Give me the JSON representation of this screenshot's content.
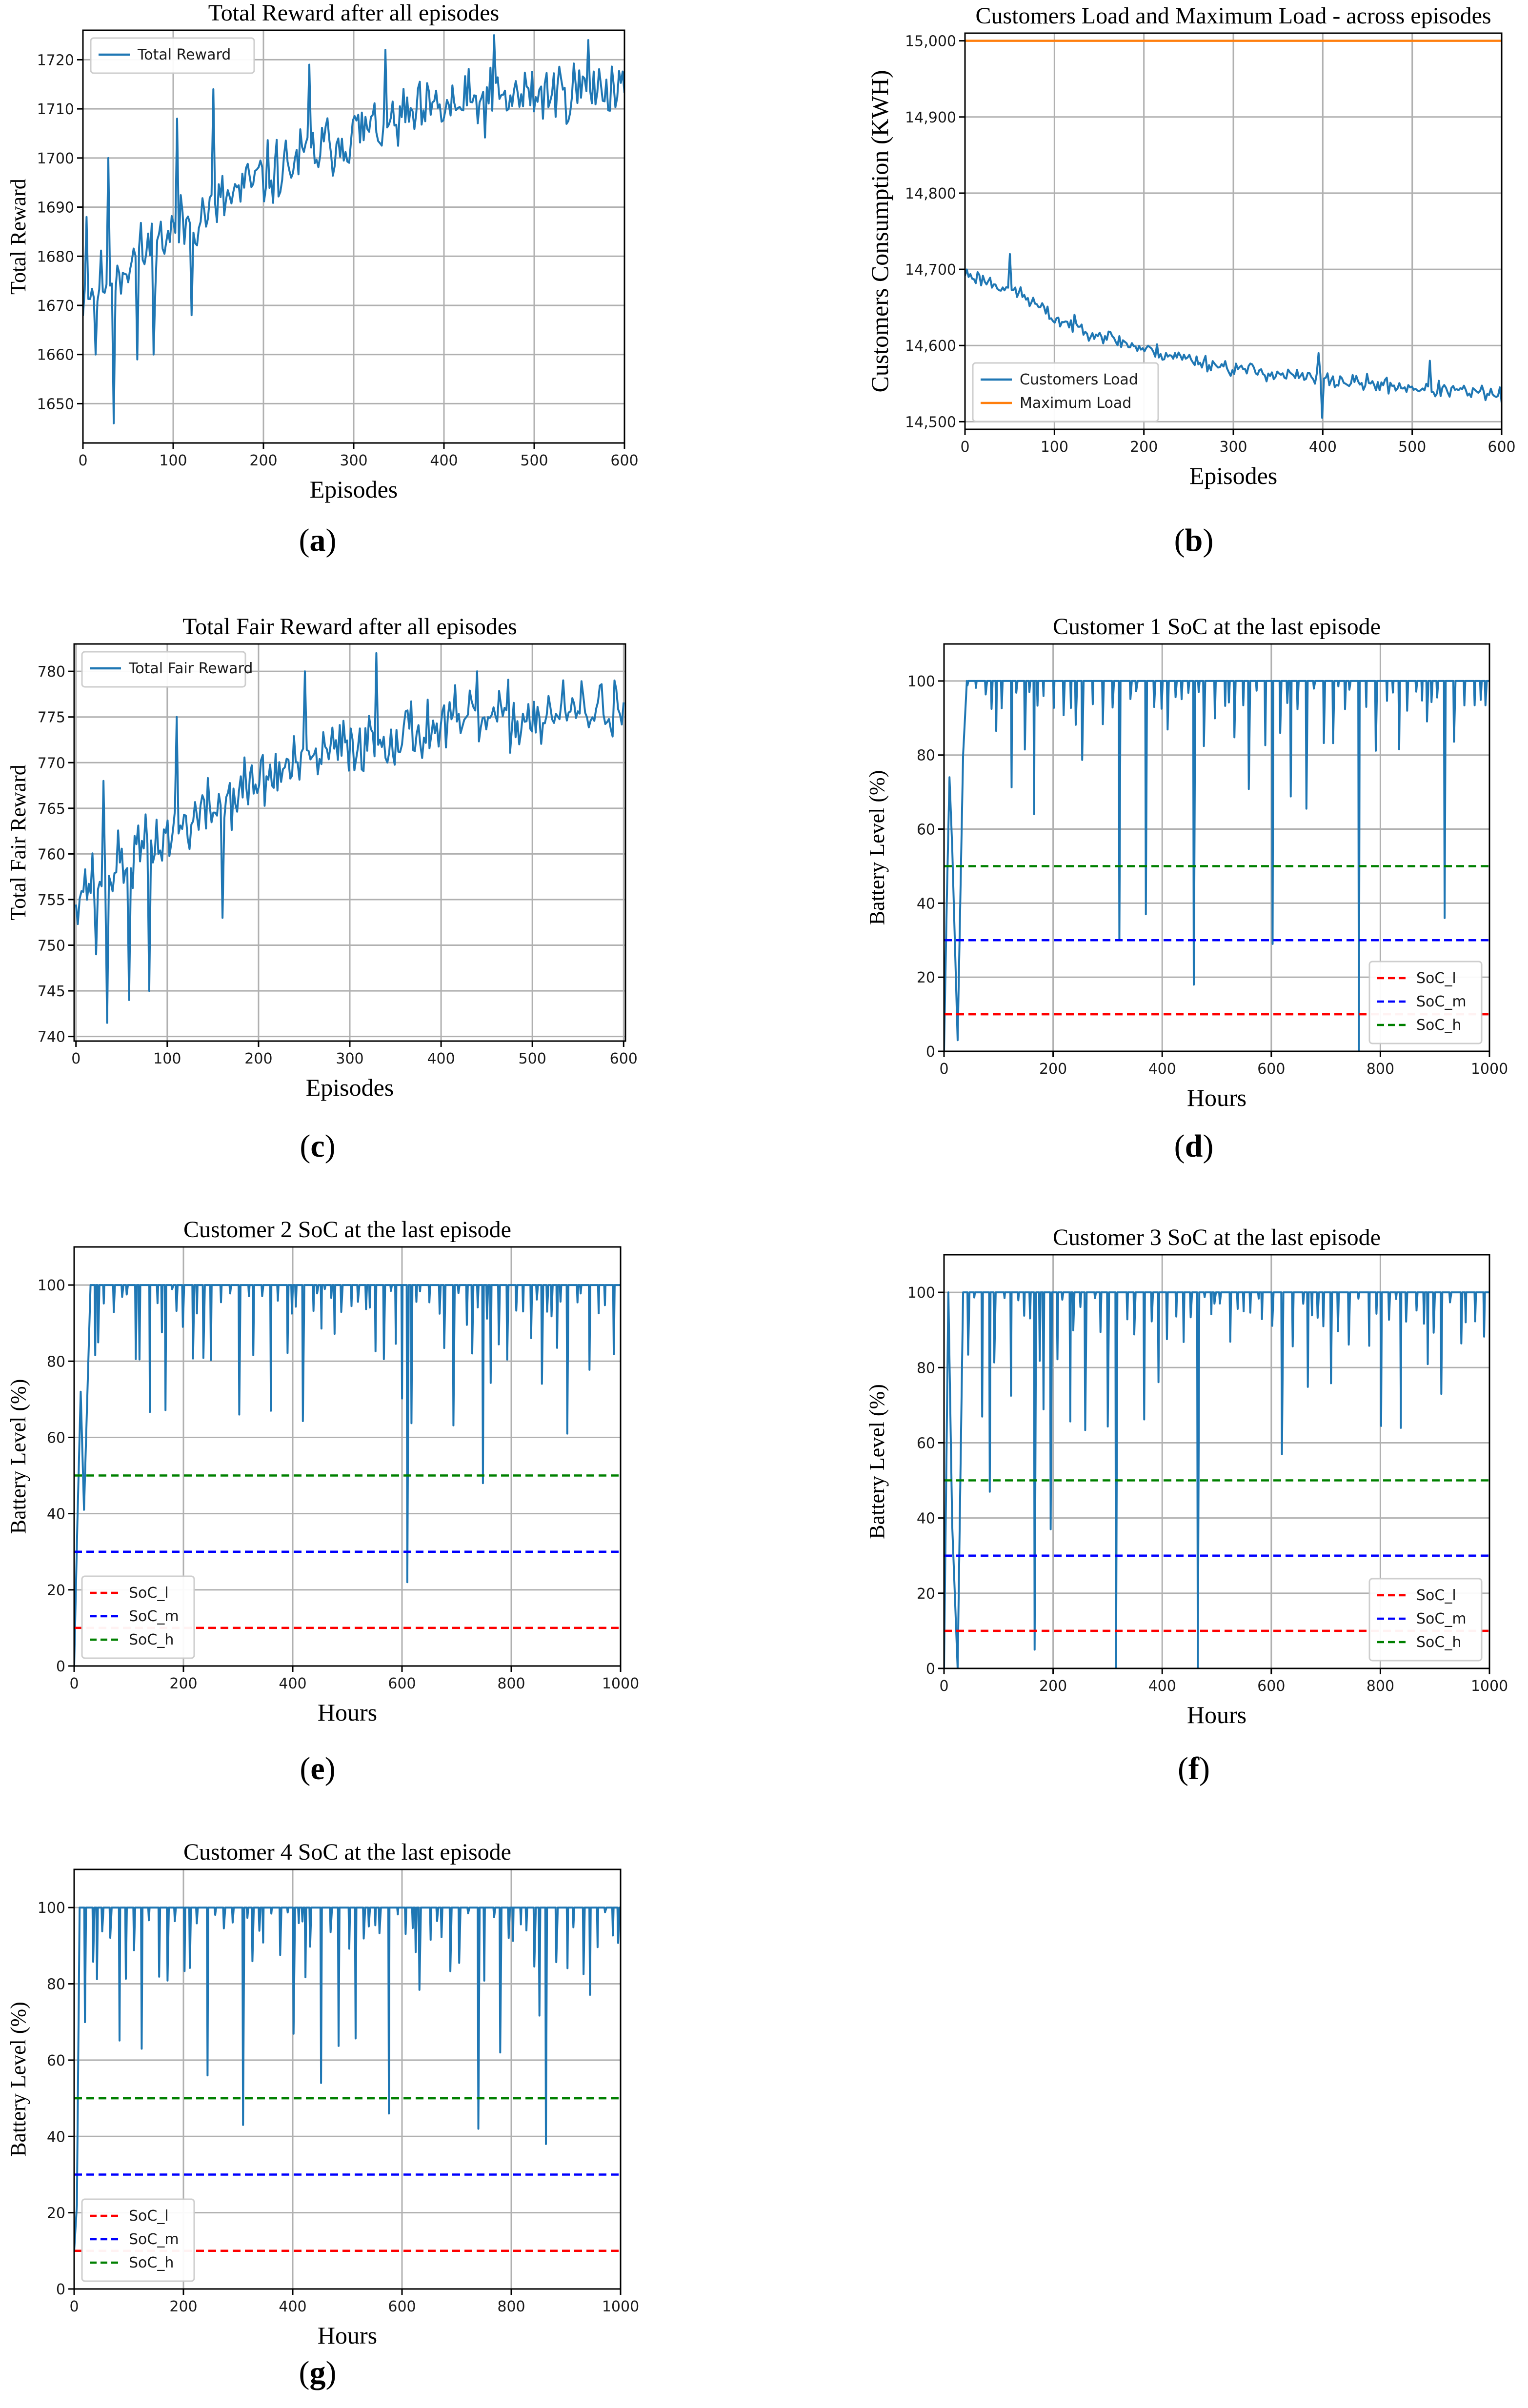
{
  "captions": {
    "a": {
      "open": "(",
      "letter": "a",
      "close": ")"
    },
    "b": {
      "open": "(",
      "letter": "b",
      "close": ")"
    },
    "c": {
      "open": "(",
      "letter": "c",
      "close": ")"
    },
    "d": {
      "open": "(",
      "letter": "d",
      "close": ")"
    },
    "e": {
      "open": "(",
      "letter": "e",
      "close": ")"
    },
    "f": {
      "open": "(",
      "letter": "f",
      "close": ")"
    },
    "g": {
      "open": "(",
      "letter": "g",
      "close": ")"
    }
  },
  "chart_data": [
    {
      "id": "a",
      "type": "line",
      "title": "Total Reward after all episodes",
      "xlabel": "Episodes",
      "ylabel": "Total Reward",
      "xlim": [
        0,
        600
      ],
      "ylim": [
        1642,
        1726
      ],
      "xticks": [
        0,
        100,
        200,
        300,
        400,
        500,
        600
      ],
      "xtick_labels": [
        "0",
        "100",
        "200",
        "300",
        "400",
        "500",
        "600"
      ],
      "yticks": [
        1650,
        1660,
        1670,
        1680,
        1690,
        1700,
        1710,
        1720
      ],
      "ytick_labels": [
        "1650",
        "1660",
        "1670",
        "1680",
        "1690",
        "1700",
        "1710",
        "1720"
      ],
      "grid": true,
      "legend_position": "top-left",
      "series": [
        {
          "name": "Total Reward",
          "color": "#1f77b4",
          "style": "solid",
          "gen": {
            "kind": "noisy",
            "n": 300,
            "seed": 11,
            "x0": 0,
            "x1": 600,
            "trend": [
              [
                0,
                1672
              ],
              [
                100,
                1685
              ],
              [
                200,
                1696
              ],
              [
                300,
                1705
              ],
              [
                400,
                1710
              ],
              [
                500,
                1713
              ],
              [
                600,
                1715
              ]
            ],
            "noise": 7,
            "spikes": [
              [
                5,
                1688
              ],
              [
                15,
                1660
              ],
              [
                28,
                1700
              ],
              [
                34,
                1646
              ],
              [
                60,
                1659
              ],
              [
                78,
                1660
              ],
              [
                105,
                1708
              ],
              [
                120,
                1668
              ],
              [
                145,
                1714
              ],
              [
                250,
                1719
              ],
              [
                335,
                1722
              ],
              [
                455,
                1725
              ],
              [
                560,
                1724
              ]
            ]
          }
        }
      ]
    },
    {
      "id": "b",
      "type": "line",
      "title": "Customers Load and Maximum Load - across episodes",
      "xlabel": "Episodes",
      "ylabel": "Customers Consumption (KWH)",
      "xlim": [
        0,
        600
      ],
      "ylim": [
        14490,
        15010
      ],
      "xticks": [
        0,
        100,
        200,
        300,
        400,
        500,
        600
      ],
      "xtick_labels": [
        "0",
        "100",
        "200",
        "300",
        "400",
        "500",
        "600"
      ],
      "yticks": [
        14500,
        14600,
        14700,
        14800,
        14900,
        15000
      ],
      "ytick_labels": [
        "14,500",
        "14,600",
        "14,700",
        "14,800",
        "14,900",
        "15,000"
      ],
      "grid": true,
      "legend_position": "bottom-left",
      "series": [
        {
          "name": "Customers Load",
          "color": "#1f77b4",
          "style": "solid",
          "gen": {
            "kind": "noisy",
            "n": 300,
            "seed": 23,
            "x0": 0,
            "x1": 600,
            "trend": [
              [
                0,
                14695
              ],
              [
                60,
                14670
              ],
              [
                100,
                14635
              ],
              [
                200,
                14595
              ],
              [
                300,
                14570
              ],
              [
                400,
                14555
              ],
              [
                500,
                14545
              ],
              [
                600,
                14535
              ]
            ],
            "noise": 11,
            "spikes": [
              [
                50,
                14720
              ],
              [
                395,
                14590
              ],
              [
                400,
                14505
              ],
              [
                520,
                14580
              ]
            ]
          }
        },
        {
          "name": "Maximum Load",
          "color": "#ff7f0e",
          "style": "solid",
          "points": [
            [
              0,
              15000
            ],
            [
              600,
              15000
            ]
          ]
        }
      ]
    },
    {
      "id": "c",
      "type": "line",
      "title": "Total Fair Reward after all episodes",
      "xlabel": "Episodes",
      "ylabel": "Total Fair Reward",
      "xlim": [
        -2,
        602
      ],
      "ylim": [
        739.5,
        783
      ],
      "xticks": [
        0,
        100,
        200,
        300,
        400,
        500,
        600
      ],
      "xtick_labels": [
        "0",
        "100",
        "200",
        "300",
        "400",
        "500",
        "600"
      ],
      "yticks": [
        740,
        745,
        750,
        755,
        760,
        765,
        770,
        775,
        780
      ],
      "ytick_labels": [
        "740",
        "745",
        "750",
        "755",
        "760",
        "765",
        "770",
        "775",
        "780"
      ],
      "grid": true,
      "legend_position": "top-left",
      "series": [
        {
          "name": "Total Fair Reward",
          "color": "#1f77b4",
          "style": "solid",
          "gen": {
            "kind": "noisy",
            "n": 300,
            "seed": 37,
            "x0": 0,
            "x1": 600,
            "trend": [
              [
                0,
                756
              ],
              [
                100,
                762
              ],
              [
                200,
                768
              ],
              [
                300,
                772
              ],
              [
                400,
                774
              ],
              [
                500,
                775
              ],
              [
                600,
                776
              ]
            ],
            "noise": 3.6,
            "spikes": [
              [
                22,
                749
              ],
              [
                30,
                768
              ],
              [
                34,
                741.5
              ],
              [
                58,
                744
              ],
              [
                80,
                745
              ],
              [
                110,
                775
              ],
              [
                160,
                753
              ],
              [
                250,
                780
              ],
              [
                330,
                782
              ],
              [
                440,
                780
              ],
              [
                590,
                779
              ]
            ]
          }
        }
      ]
    },
    {
      "id": "d",
      "type": "line",
      "title": "Customer 1 SoC at the last episode",
      "xlabel": "Hours",
      "ylabel": "Battery Level (%)",
      "xlim": [
        0,
        1000
      ],
      "ylim": [
        0,
        110
      ],
      "xticks": [
        0,
        200,
        400,
        600,
        800,
        1000
      ],
      "xtick_labels": [
        "0",
        "200",
        "400",
        "600",
        "800",
        "1000"
      ],
      "yticks": [
        0,
        20,
        40,
        60,
        80,
        100
      ],
      "ytick_labels": [
        "0",
        "20",
        "40",
        "60",
        "80",
        "100"
      ],
      "grid": true,
      "legend_position": "bottom-right",
      "series": [
        {
          "name": "SoC",
          "color": "#1f77b4",
          "style": "solid",
          "legend": false,
          "gen": {
            "kind": "soc",
            "seed": 101,
            "x0": 0,
            "x1": 1000,
            "start": [
              [
                0,
                0
              ],
              [
                5,
                40
              ],
              [
                10,
                74
              ],
              [
                15,
                55
              ],
              [
                25,
                3
              ],
              [
                35,
                80
              ]
            ],
            "deep": [
              [
                318,
                30
              ],
              [
                362,
                37
              ],
              [
                455,
                18
              ],
              [
                602,
                29
              ],
              [
                753,
                0
              ],
              [
                918,
                36
              ]
            ]
          }
        },
        {
          "name": "SoC_l",
          "color": "#ff0000",
          "style": "dashed",
          "points": [
            [
              0,
              10
            ],
            [
              1000,
              10
            ]
          ]
        },
        {
          "name": "SoC_m",
          "color": "#0000ff",
          "style": "dashed",
          "points": [
            [
              0,
              30
            ],
            [
              1000,
              30
            ]
          ]
        },
        {
          "name": "SoC_h",
          "color": "#008000",
          "style": "dashed",
          "points": [
            [
              0,
              50
            ],
            [
              1000,
              50
            ]
          ]
        }
      ]
    },
    {
      "id": "e",
      "type": "line",
      "title": "Customer 2 SoC at the last episode",
      "xlabel": "Hours",
      "ylabel": "Battery Level (%)",
      "xlim": [
        0,
        1000
      ],
      "ylim": [
        0,
        110
      ],
      "xticks": [
        0,
        200,
        400,
        600,
        800,
        1000
      ],
      "xtick_labels": [
        "0",
        "200",
        "400",
        "600",
        "800",
        "1000"
      ],
      "yticks": [
        0,
        20,
        40,
        60,
        80,
        100
      ],
      "ytick_labels": [
        "0",
        "20",
        "40",
        "60",
        "80",
        "100"
      ],
      "grid": true,
      "legend_position": "bottom-left",
      "series": [
        {
          "name": "SoC",
          "color": "#1f77b4",
          "style": "solid",
          "legend": false,
          "gen": {
            "kind": "soc",
            "seed": 202,
            "x0": 0,
            "x1": 1000,
            "start": [
              [
                0,
                0
              ],
              [
                6,
                38
              ],
              [
                12,
                72
              ],
              [
                18,
                41
              ],
              [
                30,
                100
              ]
            ],
            "deep": [
              [
                305,
                66
              ],
              [
                362,
                67
              ],
              [
                608,
                22
              ],
              [
                745,
                48
              ],
              [
                900,
                61
              ]
            ]
          }
        },
        {
          "name": "SoC_l",
          "color": "#ff0000",
          "style": "dashed",
          "points": [
            [
              0,
              10
            ],
            [
              1000,
              10
            ]
          ]
        },
        {
          "name": "SoC_m",
          "color": "#0000ff",
          "style": "dashed",
          "points": [
            [
              0,
              30
            ],
            [
              1000,
              30
            ]
          ]
        },
        {
          "name": "SoC_h",
          "color": "#008000",
          "style": "dashed",
          "points": [
            [
              0,
              50
            ],
            [
              1000,
              50
            ]
          ]
        }
      ]
    },
    {
      "id": "f",
      "type": "line",
      "title": "Customer 3 SoC at the last episode",
      "xlabel": "Hours",
      "ylabel": "Battery Level (%)",
      "xlim": [
        0,
        1000
      ],
      "ylim": [
        0,
        110
      ],
      "xticks": [
        0,
        200,
        400,
        600,
        800,
        1000
      ],
      "xtick_labels": [
        "0",
        "200",
        "400",
        "600",
        "800",
        "1000"
      ],
      "yticks": [
        0,
        20,
        40,
        60,
        80,
        100
      ],
      "ytick_labels": [
        "0",
        "20",
        "40",
        "60",
        "80",
        "100"
      ],
      "grid": true,
      "legend_position": "bottom-right",
      "series": [
        {
          "name": "SoC",
          "color": "#1f77b4",
          "style": "solid",
          "legend": false,
          "gen": {
            "kind": "soc",
            "seed": 303,
            "x0": 0,
            "x1": 1000,
            "start": [
              [
                0,
                0
              ],
              [
                8,
                100
              ],
              [
                15,
                38
              ],
              [
                25,
                0
              ],
              [
                35,
                100
              ]
            ],
            "deep": [
              [
                85,
                47
              ],
              [
                170,
                5
              ],
              [
                190,
                37
              ],
              [
                318,
                0
              ],
              [
                458,
                0
              ],
              [
                610,
                57
              ],
              [
                905,
                73
              ]
            ]
          }
        },
        {
          "name": "SoC_l",
          "color": "#ff0000",
          "style": "dashed",
          "points": [
            [
              0,
              10
            ],
            [
              1000,
              10
            ]
          ]
        },
        {
          "name": "SoC_m",
          "color": "#0000ff",
          "style": "dashed",
          "points": [
            [
              0,
              30
            ],
            [
              1000,
              30
            ]
          ]
        },
        {
          "name": "SoC_h",
          "color": "#008000",
          "style": "dashed",
          "points": [
            [
              0,
              50
            ],
            [
              1000,
              50
            ]
          ]
        }
      ]
    },
    {
      "id": "g",
      "type": "line",
      "title": "Customer 4 SoC at the last episode",
      "xlabel": "Hours",
      "ylabel": "Battery Level (%)",
      "xlim": [
        0,
        1000
      ],
      "ylim": [
        0,
        110
      ],
      "xticks": [
        0,
        200,
        400,
        600,
        800,
        1000
      ],
      "xtick_labels": [
        "0",
        "200",
        "400",
        "600",
        "800",
        "1000"
      ],
      "yticks": [
        0,
        20,
        40,
        60,
        80,
        100
      ],
      "ytick_labels": [
        "0",
        "20",
        "40",
        "60",
        "80",
        "100"
      ],
      "grid": true,
      "legend_position": "bottom-left",
      "series": [
        {
          "name": "SoC",
          "color": "#1f77b4",
          "style": "solid",
          "legend": false,
          "gen": {
            "kind": "soc",
            "seed": 404,
            "x0": 0,
            "x1": 1000,
            "start": [
              [
                0,
                10
              ],
              [
                5,
                22
              ],
              [
                10,
                100
              ]
            ],
            "deep": [
              [
                120,
                63
              ],
              [
                232,
                56
              ],
              [
                295,
                43
              ],
              [
                455,
                54
              ],
              [
                580,
                46
              ],
              [
                738,
                42
              ],
              [
                868,
                38
              ]
            ]
          }
        },
        {
          "name": "SoC_l",
          "color": "#ff0000",
          "style": "dashed",
          "points": [
            [
              0,
              10
            ],
            [
              1000,
              10
            ]
          ]
        },
        {
          "name": "SoC_m",
          "color": "#0000ff",
          "style": "dashed",
          "points": [
            [
              0,
              30
            ],
            [
              1000,
              30
            ]
          ]
        },
        {
          "name": "SoC_h",
          "color": "#008000",
          "style": "dashed",
          "points": [
            [
              0,
              50
            ],
            [
              1000,
              50
            ]
          ]
        }
      ]
    }
  ]
}
